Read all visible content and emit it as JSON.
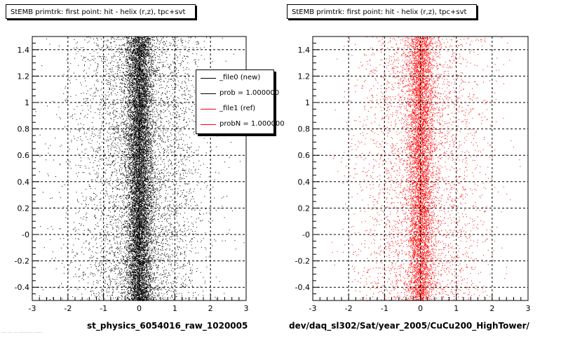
{
  "footer_text": "... ... .. ......... .....",
  "chart_data": [
    {
      "type": "scatter",
      "title": "StEMB primtrk: first point: hit - helix (r,z), tpc+svt",
      "xlabel": "st_physics_6054016_raw_1020005",
      "ylabel": "",
      "xlim": [
        -3,
        3
      ],
      "ylim": [
        -0.5,
        1.5
      ],
      "x_ticks": [
        "-3",
        "-2",
        "-1",
        "0",
        "1",
        "2",
        "3"
      ],
      "y_ticks": [
        "-0.4",
        "-0.2",
        "-0",
        "0.2",
        "0.4",
        "0.6",
        "0.8",
        "1",
        "1.2",
        "1.4"
      ],
      "grid": true,
      "marker_color": "#000000",
      "distribution": {
        "x_center": 0.0,
        "x_core_sigma": 0.18,
        "x_tail_sigma": 0.9,
        "y_range": [
          -0.5,
          1.5
        ]
      },
      "legend": {
        "placement": "top-right",
        "entries": [
          {
            "label": "_file0 (new)",
            "color": "#000000"
          },
          {
            "label": "prob = 1.000000",
            "color": "#000000"
          },
          {
            "label": "_file1 (ref)",
            "color": "#ff0000"
          },
          {
            "label": "probN = 1.000000",
            "color": "#ff0000"
          }
        ]
      }
    },
    {
      "type": "scatter",
      "title": "StEMB primtrk: first point: hit - helix (r,z), tpc+svt",
      "xlabel": "dev/daq_sl302/Sat/year_2005/CuCu200_HighTower/",
      "ylabel": "",
      "xlim": [
        -3,
        3
      ],
      "ylim": [
        -0.5,
        1.5
      ],
      "x_ticks": [
        "-3",
        "-2",
        "-1",
        "0",
        "1",
        "2",
        "3"
      ],
      "y_ticks": [
        "-0.4",
        "-0.2",
        "-0",
        "0.2",
        "0.4",
        "0.6",
        "0.8",
        "1",
        "1.2",
        "1.4"
      ],
      "grid": true,
      "marker_color": "#ff0000",
      "distribution": {
        "x_center": 0.0,
        "x_core_sigma": 0.18,
        "x_tail_sigma": 0.9,
        "y_range": [
          -0.5,
          1.5
        ]
      }
    }
  ]
}
